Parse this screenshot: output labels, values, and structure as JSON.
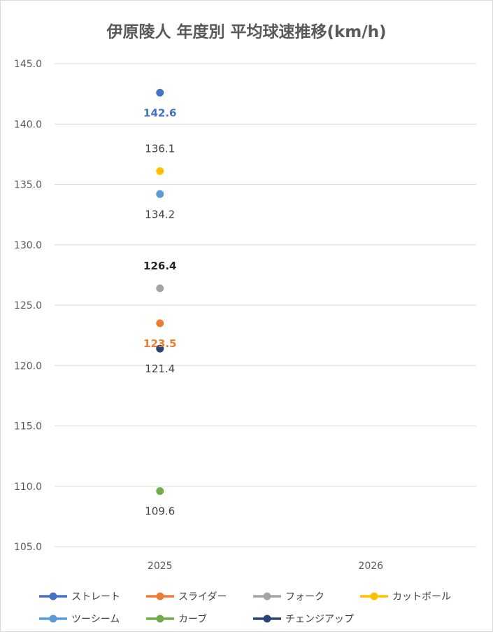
{
  "title": "伊原陵人 年度別 平均球速推移(km/h)",
  "chart_data": {
    "type": "line",
    "title": "伊原陵人 年度別 平均球速推移(km/h)",
    "categories": [
      "2025",
      "2026"
    ],
    "ylim": [
      105.0,
      145.0
    ],
    "yticks": [
      "145.0",
      "140.0",
      "135.0",
      "130.0",
      "125.0",
      "120.0",
      "115.0",
      "110.0",
      "105.0"
    ],
    "grid": true,
    "legend_position": "bottom",
    "series": [
      {
        "name": "ストレート",
        "values": [
          142.6,
          null
        ],
        "label": "142.6",
        "color": "#4472c4",
        "label_color": "#4472c4",
        "label_bold": true,
        "label_side": "below"
      },
      {
        "name": "スライダー",
        "values": [
          123.5,
          null
        ],
        "label": "123.5",
        "color": "#ed7d31",
        "label_color": "#ed7d31",
        "label_bold": true,
        "label_side": "below"
      },
      {
        "name": "フォーク",
        "values": [
          126.4,
          null
        ],
        "label": "126.4",
        "color": "#a5a5a5",
        "label_color": "#262626",
        "label_bold": true,
        "label_side": "above"
      },
      {
        "name": "カットボール",
        "values": [
          136.1,
          null
        ],
        "label": "136.1",
        "color": "#ffc000",
        "label_color": "#404040",
        "label_bold": false,
        "label_side": "above"
      },
      {
        "name": "ツーシーム",
        "values": [
          134.2,
          null
        ],
        "label": "134.2",
        "color": "#5b9bd5",
        "label_color": "#404040",
        "label_bold": false,
        "label_side": "below"
      },
      {
        "name": "カーブ",
        "values": [
          109.6,
          null
        ],
        "label": "109.6",
        "color": "#70ad47",
        "label_color": "#404040",
        "label_bold": false,
        "label_side": "below"
      },
      {
        "name": "チェンジアップ",
        "values": [
          121.4,
          null
        ],
        "label": "121.4",
        "color": "#264478",
        "label_color": "#404040",
        "label_bold": false,
        "label_side": "below"
      }
    ]
  }
}
